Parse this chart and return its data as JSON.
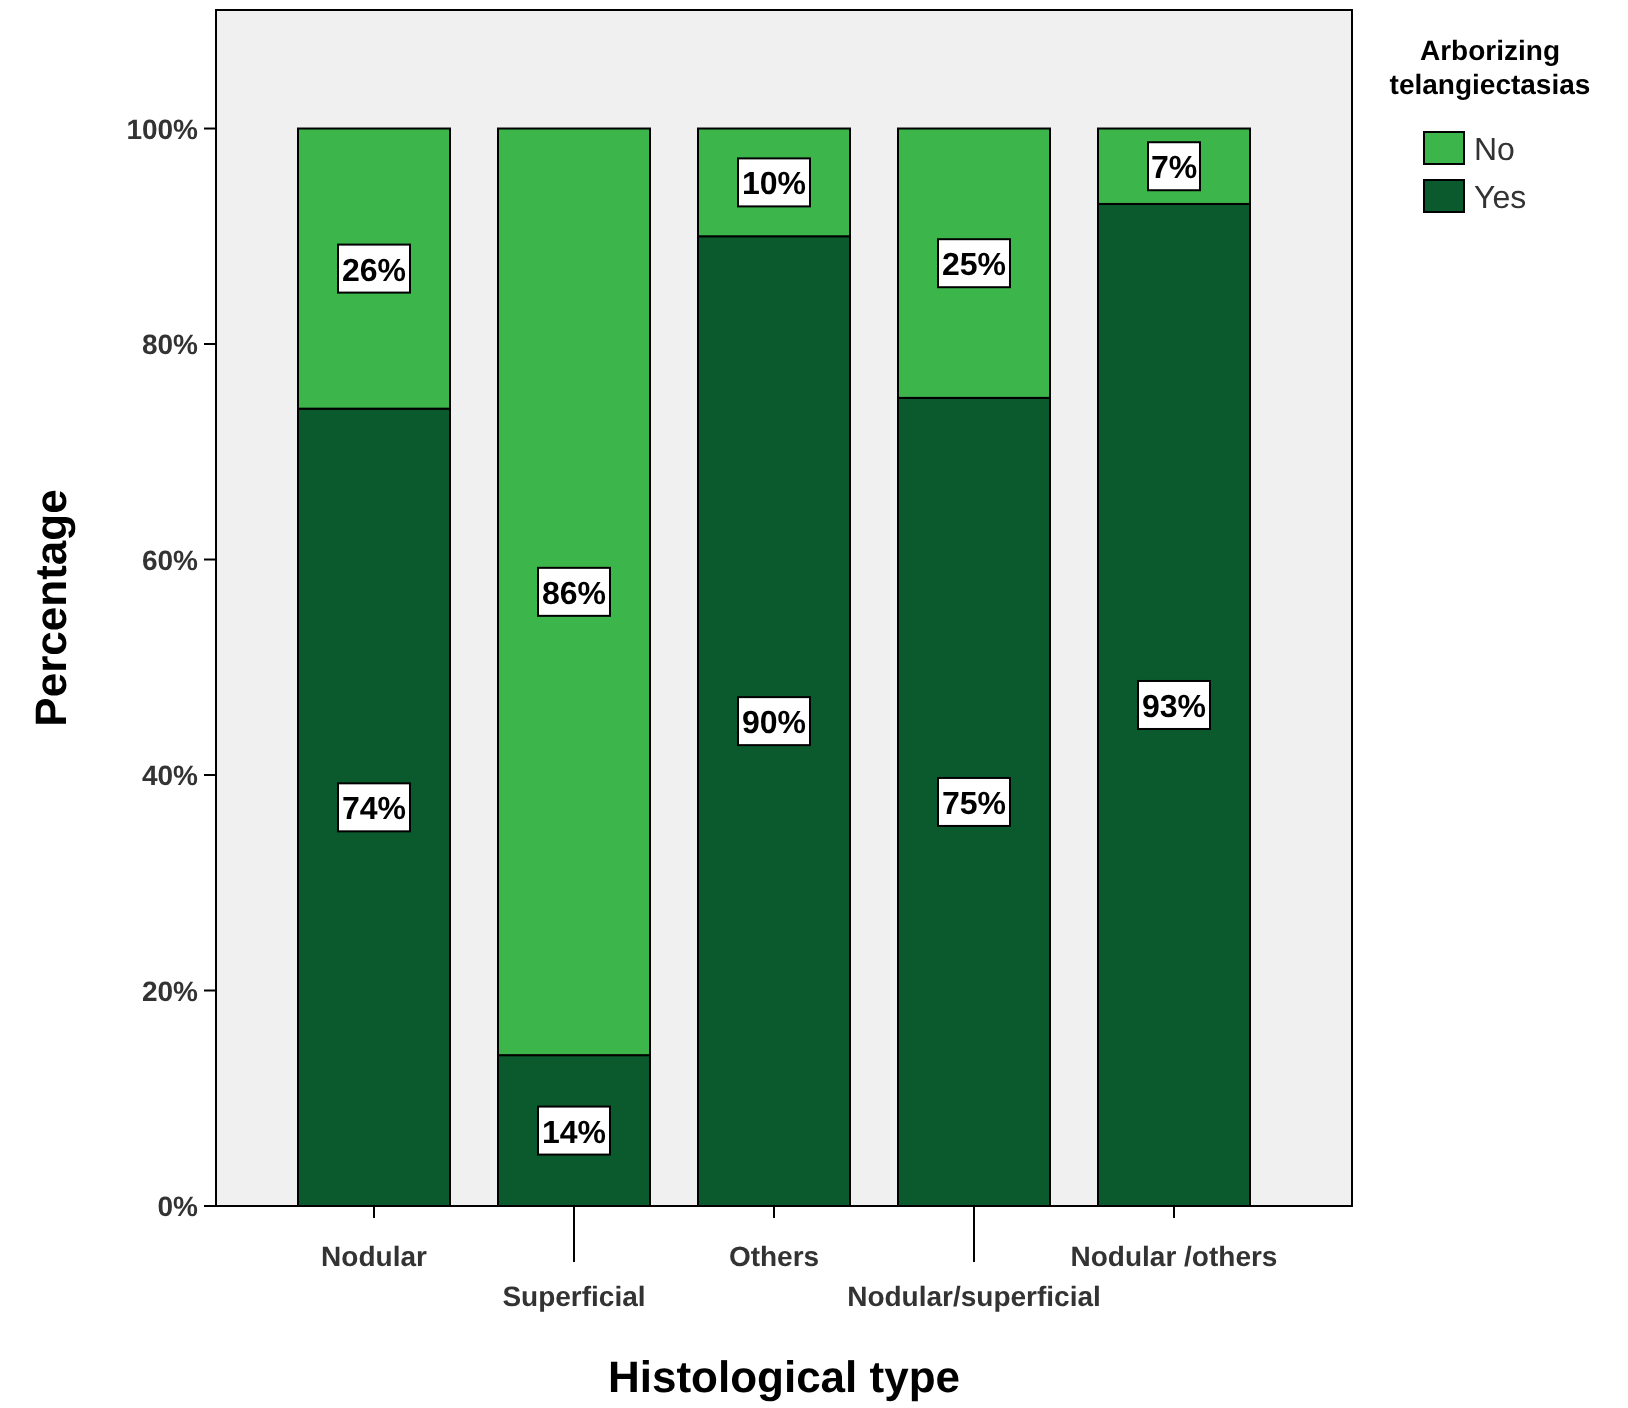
{
  "chart_data": {
    "type": "bar",
    "stacked": true,
    "xlabel": "Histological type",
    "ylabel": "Percentage",
    "legend_title": "Arborizing telangiectasias",
    "legend": "right",
    "grid": false,
    "categories": [
      "Nodular",
      "Superficial",
      "Others",
      "Nodular/superficial",
      "Nodular /others"
    ],
    "ylim": [
      0,
      111
    ],
    "yticks": [
      {
        "value": 0,
        "label": "0%"
      },
      {
        "value": 20,
        "label": "20%"
      },
      {
        "value": 40,
        "label": "40%"
      },
      {
        "value": 60,
        "label": "60%"
      },
      {
        "value": 80,
        "label": "80%"
      },
      {
        "value": 100,
        "label": "100%"
      }
    ],
    "series": [
      {
        "name": "Yes",
        "color": "#0b5a2e",
        "values": [
          74,
          14,
          90,
          75,
          93
        ],
        "value_labels": [
          "74%",
          "14%",
          "90%",
          "75%",
          "93%"
        ]
      },
      {
        "name": "No",
        "color": "#3cb54a",
        "values": [
          26,
          86,
          10,
          25,
          7
        ],
        "value_labels": [
          "26%",
          "86%",
          "10%",
          "25%",
          "7%"
        ]
      }
    ]
  }
}
